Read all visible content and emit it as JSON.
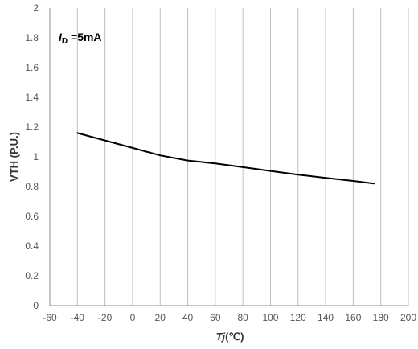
{
  "chart_data": {
    "type": "line",
    "title": "",
    "xlabel_italic": "T",
    "xlabel_sub": "j",
    "xlabel_rest": "(℃)",
    "ylabel": "VTH (P.U.)",
    "annotation": {
      "main": "I",
      "sub": "D",
      "rest": " =5mA"
    },
    "xlim": [
      -60,
      200
    ],
    "ylim": [
      0,
      2
    ],
    "x_ticks": [
      -60,
      -40,
      -20,
      0,
      20,
      40,
      60,
      80,
      100,
      120,
      140,
      160,
      180,
      200
    ],
    "y_ticks": [
      0,
      0.2,
      0.4,
      0.6,
      0.8,
      1,
      1.2,
      1.4,
      1.6,
      1.8,
      2
    ],
    "grid": {
      "vertical": true,
      "horizontal": false
    },
    "series": [
      {
        "color": "#000000",
        "x": [
          -40,
          -20,
          0,
          20,
          40,
          60,
          80,
          100,
          120,
          140,
          160,
          175
        ],
        "y": [
          1.16,
          1.11,
          1.06,
          1.01,
          0.975,
          0.955,
          0.93,
          0.905,
          0.88,
          0.858,
          0.838,
          0.82
        ]
      }
    ],
    "colors": {
      "grid": "#bfbfbf",
      "axis": "#8c8c8c",
      "line": "#000000"
    }
  }
}
